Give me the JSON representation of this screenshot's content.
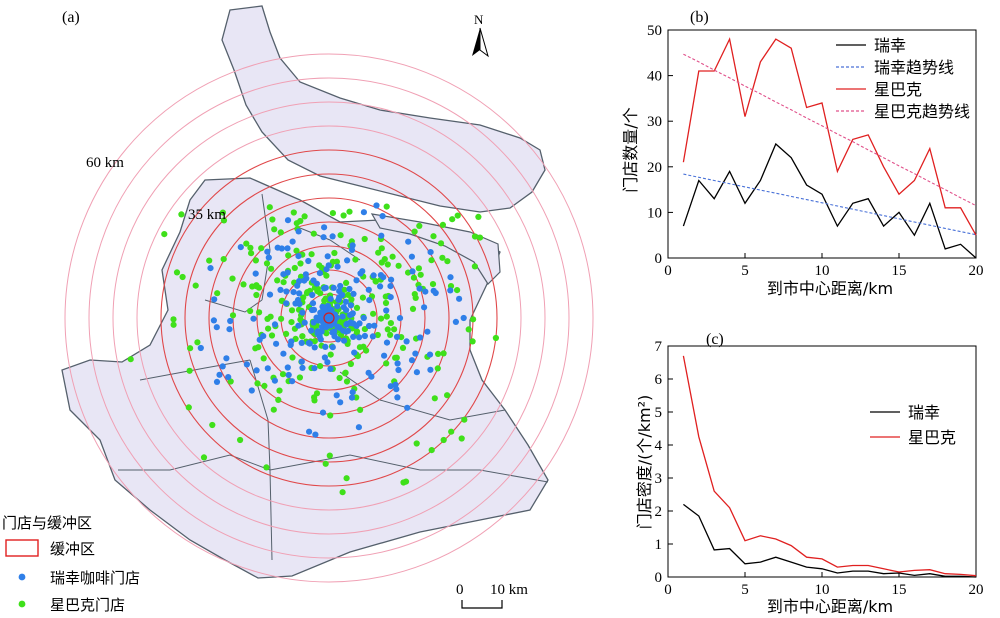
{
  "map": {
    "panel_label": "(a)",
    "north_label": "N",
    "ring_label_outer": "60 km",
    "ring_label_inner": "35 km",
    "scale_zero": "0",
    "scale_label": "10 km",
    "legend_title": "门店与缓冲区",
    "legend_buffer": "缓冲区",
    "legend_luckin": "瑞幸咖啡门店",
    "legend_starbucks": "星巴克门店",
    "colors": {
      "land": "#e8e6f5",
      "boundary": "#55606c",
      "ring_inner": "#e0484a",
      "ring_outer": "#f0a0b4",
      "luckin": "#2f7fe8",
      "starbucks": "#3fe01a"
    }
  },
  "chart_data": [
    {
      "type": "line",
      "panel_label": "(b)",
      "xlabel": "到市中心距离/km",
      "ylabel": "门店数量/个",
      "xlim": [
        0,
        20
      ],
      "ylim": [
        0,
        50
      ],
      "xticks": [
        0,
        5,
        10,
        15,
        20
      ],
      "yticks": [
        0,
        10,
        20,
        30,
        40,
        50
      ],
      "legend_position": "top-right",
      "x": [
        1,
        2,
        3,
        4,
        5,
        6,
        7,
        8,
        9,
        10,
        11,
        12,
        13,
        14,
        15,
        16,
        17,
        18,
        19,
        20
      ],
      "series": [
        {
          "name": "瑞幸",
          "color": "#000000",
          "style": "solid",
          "values": [
            7,
            17,
            13,
            19,
            12,
            17,
            25,
            22,
            16,
            14,
            7,
            12,
            13,
            7,
            10,
            5,
            12,
            2,
            3,
            0
          ]
        },
        {
          "name": "瑞幸趋势线",
          "color": "#4a72d8",
          "style": "dashed",
          "values": [
            18.4,
            17.7,
            17.0,
            16.3,
            15.6,
            14.9,
            14.2,
            13.5,
            12.8,
            12.1,
            11.4,
            10.7,
            10.0,
            9.3,
            8.6,
            7.9,
            7.2,
            6.5,
            5.8,
            5.1
          ]
        },
        {
          "name": "星巴克",
          "color": "#e02020",
          "style": "solid",
          "values": [
            21,
            41,
            41,
            48,
            31,
            43,
            48,
            46,
            33,
            34,
            19,
            26,
            27,
            20,
            14,
            17,
            24,
            11,
            11,
            5
          ]
        },
        {
          "name": "星巴克趋势线",
          "color": "#e0508a",
          "style": "dashed",
          "values": [
            44.7,
            43.0,
            41.2,
            39.5,
            37.7,
            36.0,
            34.2,
            32.5,
            30.7,
            29.0,
            27.2,
            25.5,
            23.7,
            22.0,
            20.2,
            18.5,
            16.7,
            15.0,
            13.2,
            11.5
          ]
        }
      ]
    },
    {
      "type": "line",
      "panel_label": "(c)",
      "xlabel": "到市中心距离/km",
      "ylabel": "门店密度/(个/km²)",
      "xlim": [
        0,
        20
      ],
      "ylim": [
        0,
        7
      ],
      "xticks": [
        0,
        5,
        10,
        15,
        20
      ],
      "yticks": [
        0,
        1,
        2,
        3,
        4,
        5,
        6,
        7
      ],
      "legend_position": "middle-right",
      "x": [
        1,
        2,
        3,
        4,
        5,
        6,
        7,
        8,
        9,
        10,
        11,
        12,
        13,
        14,
        15,
        16,
        17,
        18,
        19,
        20
      ],
      "series": [
        {
          "name": "瑞幸",
          "color": "#000000",
          "style": "solid",
          "values": [
            2.2,
            1.85,
            0.82,
            0.86,
            0.4,
            0.45,
            0.6,
            0.45,
            0.3,
            0.25,
            0.12,
            0.18,
            0.18,
            0.1,
            0.12,
            0.05,
            0.1,
            0.02,
            0.02,
            0.0
          ]
        },
        {
          "name": "星巴克",
          "color": "#e02020",
          "style": "solid",
          "values": [
            6.7,
            4.25,
            2.6,
            2.1,
            1.1,
            1.25,
            1.15,
            0.95,
            0.6,
            0.55,
            0.3,
            0.35,
            0.35,
            0.25,
            0.15,
            0.2,
            0.22,
            0.1,
            0.08,
            0.04
          ]
        }
      ]
    }
  ]
}
